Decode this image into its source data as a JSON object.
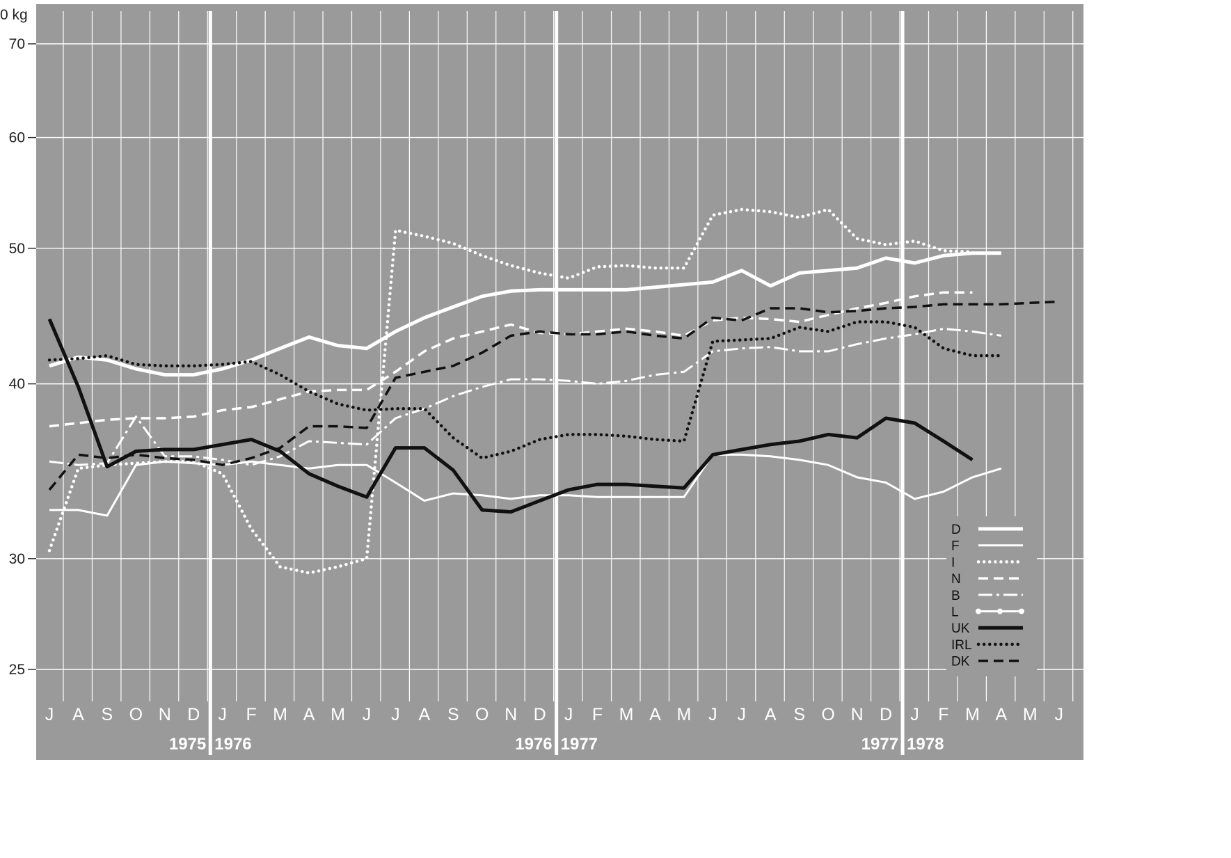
{
  "chart_data": {
    "type": "line",
    "title": "",
    "ylabel": "0 kg",
    "xlabel": "",
    "y_scale": "log",
    "ylim": [
      23,
      72
    ],
    "y_ticks": [
      25,
      30,
      40,
      50,
      60,
      70
    ],
    "grid": true,
    "legend_position": "bottom-right",
    "background": "#9a9a9a",
    "month_labels": [
      "J",
      "A",
      "S",
      "O",
      "N",
      "D",
      "J",
      "F",
      "M",
      "A",
      "M",
      "J",
      "J",
      "A",
      "S",
      "O",
      "N",
      "D",
      "J",
      "F",
      "M",
      "A",
      "M",
      "J",
      "J",
      "A",
      "S",
      "O",
      "N",
      "D",
      "J",
      "F",
      "M",
      "A",
      "M",
      "J"
    ],
    "year_dividers": [
      {
        "after_index": 5,
        "left": "1975",
        "right": "1976"
      },
      {
        "after_index": 17,
        "left": "1976",
        "right": "1977"
      },
      {
        "after_index": 29,
        "left": "1977",
        "right": "1978"
      }
    ],
    "series": [
      {
        "name": "D",
        "color": "#ffffff",
        "style": "solid-thick",
        "values": [
          41.2,
          41.8,
          41.6,
          41.0,
          40.6,
          40.6,
          41.0,
          41.6,
          42.4,
          43.2,
          42.6,
          42.4,
          43.6,
          44.6,
          45.4,
          46.2,
          46.6,
          46.7,
          46.7,
          46.7,
          46.7,
          46.9,
          47.1,
          47.3,
          48.2,
          47.0,
          48.0,
          48.2,
          48.4,
          49.2,
          48.8,
          49.4,
          49.6,
          49.6,
          null,
          null
        ]
      },
      {
        "name": "F",
        "color": "#ffffff",
        "style": "solid-thin",
        "values": [
          32.5,
          32.5,
          32.2,
          35.0,
          35.2,
          35.1,
          35.0,
          35.2,
          35.0,
          34.8,
          35.0,
          35.0,
          34.0,
          33.0,
          33.4,
          33.3,
          33.1,
          33.3,
          33.3,
          33.2,
          33.2,
          33.2,
          33.2,
          35.6,
          35.6,
          35.5,
          35.3,
          35.0,
          34.3,
          34.0,
          33.1,
          33.5,
          34.3,
          34.8,
          null,
          null
        ]
      },
      {
        "name": "I",
        "color": "#ffffff",
        "style": "dotted",
        "values": [
          30.4,
          34.8,
          35.0,
          35.1,
          35.2,
          35.2,
          34.5,
          31.5,
          29.6,
          29.3,
          29.6,
          30.0,
          51.5,
          51.0,
          50.4,
          49.4,
          48.6,
          48.0,
          47.6,
          48.5,
          48.6,
          48.4,
          48.4,
          52.8,
          53.3,
          53.1,
          52.6,
          53.3,
          50.8,
          50.3,
          50.6,
          49.8,
          49.7,
          null,
          null,
          null
        ]
      },
      {
        "name": "N",
        "color": "#ffffff",
        "style": "dashed",
        "values": [
          37.3,
          37.5,
          37.7,
          37.8,
          37.8,
          37.9,
          38.3,
          38.5,
          39.0,
          39.5,
          39.6,
          39.6,
          40.8,
          42.2,
          43.1,
          43.6,
          44.1,
          43.5,
          43.4,
          43.6,
          43.8,
          43.6,
          43.3,
          44.4,
          44.6,
          44.5,
          44.3,
          44.8,
          45.3,
          45.7,
          46.2,
          46.5,
          46.5,
          null,
          null,
          null
        ]
      },
      {
        "name": "B",
        "color": "#ffffff",
        "style": "dash-dot",
        "values": [
          35.2,
          35.0,
          35.1,
          37.9,
          35.5,
          35.5,
          35.3,
          35.0,
          35.5,
          36.4,
          36.3,
          36.2,
          37.8,
          38.4,
          39.2,
          39.8,
          40.3,
          40.3,
          40.2,
          40.0,
          40.2,
          40.6,
          40.8,
          42.2,
          42.4,
          42.5,
          42.2,
          42.2,
          42.7,
          43.1,
          43.4,
          43.8,
          43.6,
          43.3,
          null,
          null
        ]
      },
      {
        "name": "L",
        "color": "#ffffff",
        "style": "solid-marker",
        "values": []
      },
      {
        "name": "UK",
        "color": "#111111",
        "style": "solid-thick",
        "values": [
          44.5,
          39.8,
          34.9,
          35.8,
          35.9,
          35.9,
          36.2,
          36.5,
          35.8,
          34.5,
          33.8,
          33.2,
          36.0,
          36.0,
          34.7,
          32.5,
          32.4,
          33.0,
          33.6,
          33.9,
          33.9,
          33.8,
          33.7,
          35.6,
          35.9,
          36.2,
          36.4,
          36.8,
          36.6,
          37.8,
          37.5,
          36.4,
          35.3,
          null,
          null,
          null
        ]
      },
      {
        "name": "IRL",
        "color": "#111111",
        "style": "dotted",
        "values": [
          41.6,
          41.7,
          41.9,
          41.3,
          41.2,
          41.2,
          41.3,
          41.5,
          40.6,
          39.5,
          38.7,
          38.3,
          38.4,
          38.4,
          36.6,
          35.4,
          35.8,
          36.5,
          36.8,
          36.8,
          36.7,
          36.5,
          36.4,
          42.9,
          43.0,
          43.1,
          43.9,
          43.6,
          44.3,
          44.3,
          43.9,
          42.4,
          41.9,
          41.9,
          null,
          null
        ]
      },
      {
        "name": "DK",
        "color": "#111111",
        "style": "dashed",
        "values": [
          33.6,
          35.6,
          35.4,
          35.6,
          35.4,
          35.3,
          35.0,
          35.4,
          36.0,
          37.3,
          37.3,
          37.2,
          40.4,
          40.8,
          41.2,
          42.1,
          43.3,
          43.6,
          43.4,
          43.4,
          43.6,
          43.3,
          43.1,
          44.6,
          44.4,
          45.3,
          45.3,
          45.0,
          45.1,
          45.3,
          45.4,
          45.6,
          45.6,
          45.6,
          45.7,
          45.8
        ]
      }
    ]
  }
}
